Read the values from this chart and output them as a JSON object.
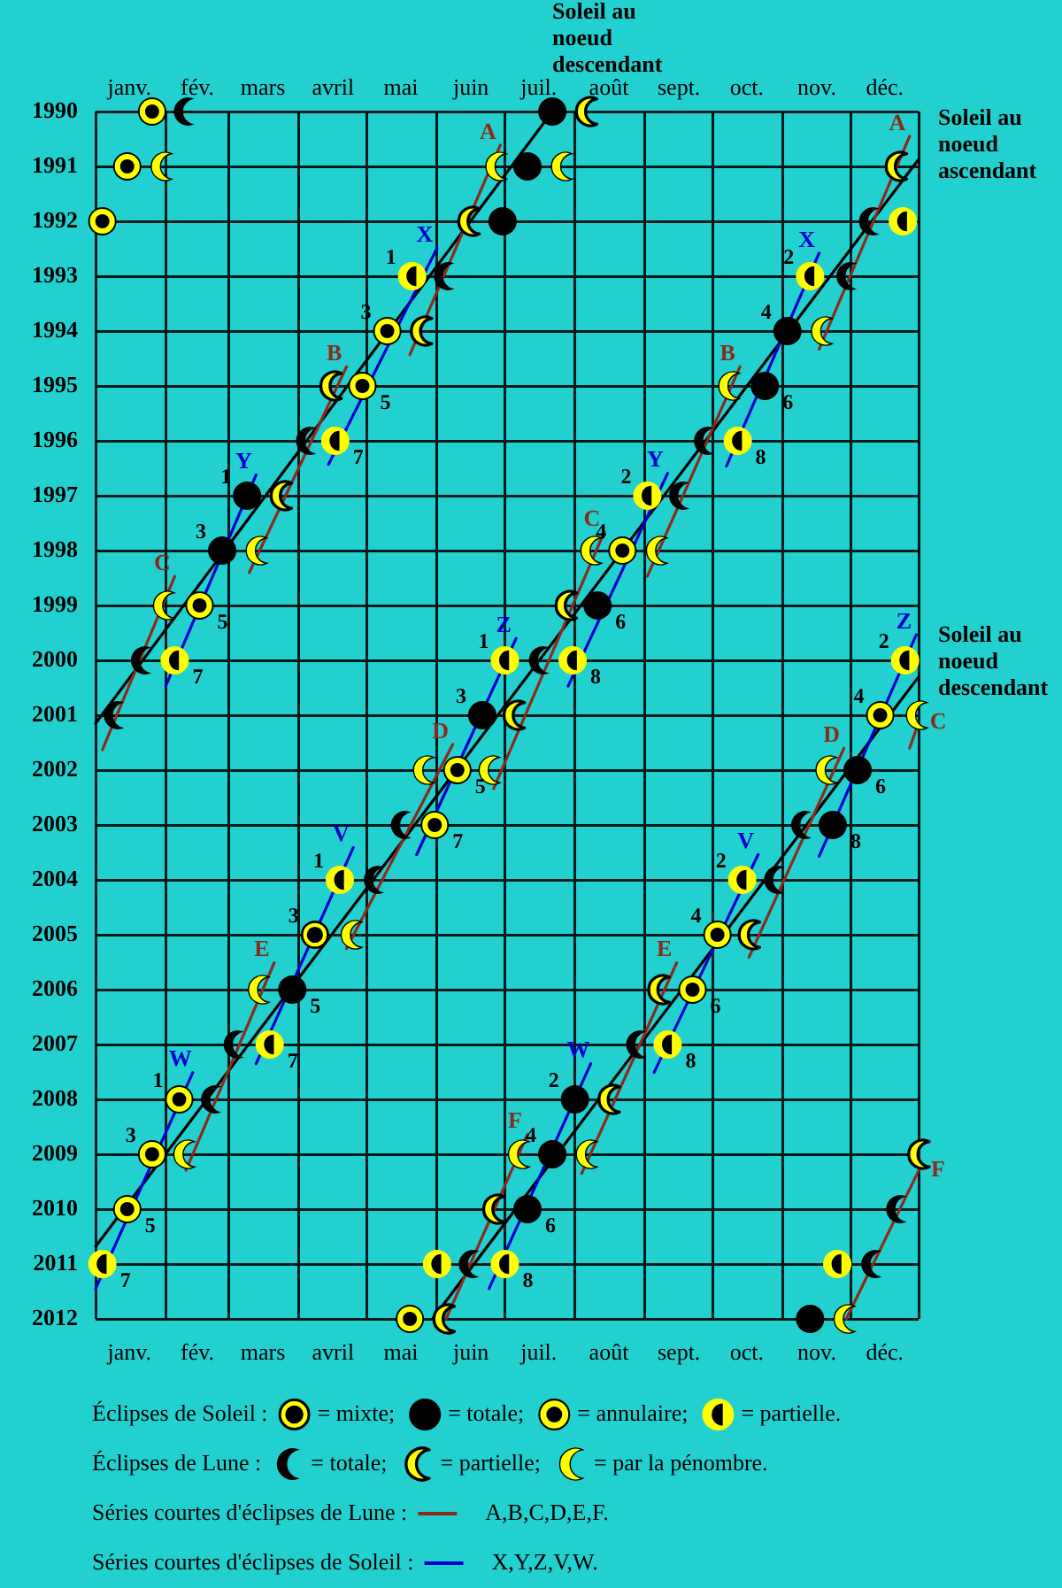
{
  "chart_data": {
    "type": "scatter",
    "xlim": [
      "--01-01",
      "--12-31"
    ],
    "xticks": [
      {
        "value": "--01-01",
        "label": null
      },
      {
        "value": "--01-16",
        "label": "janv."
      },
      {
        "value": "--02-01",
        "label": null
      },
      {
        "value": "--02-15",
        "label": "fév."
      },
      {
        "value": "--03-01",
        "label": null
      },
      {
        "value": "--03-16",
        "label": "mars"
      },
      {
        "value": "--04-01",
        "label": null
      },
      {
        "value": "--04-16",
        "label": "avril"
      },
      {
        "value": "--05-01",
        "label": null
      },
      {
        "value": "--05-16",
        "label": "mai"
      },
      {
        "value": "--06-01",
        "label": null
      },
      {
        "value": "--06-16",
        "label": "juin"
      },
      {
        "value": "--07-01",
        "label": null
      },
      {
        "value": "--07-16",
        "label": "juil."
      },
      {
        "value": "--08-01",
        "label": null
      },
      {
        "value": "--08-16",
        "label": "août"
      },
      {
        "value": "--09-01",
        "label": null
      },
      {
        "value": "--09-16",
        "label": "sept."
      },
      {
        "value": "--10-01",
        "label": null
      },
      {
        "value": "--10-16",
        "label": "oct."
      },
      {
        "value": "--11-01",
        "label": null
      },
      {
        "value": "--11-16",
        "label": "nov."
      },
      {
        "value": "--12-01",
        "label": null
      },
      {
        "value": "--12-16",
        "label": "déc."
      },
      {
        "value": "--12-31",
        "label": null
      }
    ],
    "x2lim": [
      "--01-01",
      "--12-31"
    ],
    "x2ticks": [
      {
        "value": "--01-01",
        "label": null
      },
      {
        "value": "--01-16",
        "label": "janv."
      },
      {
        "value": "--02-01",
        "label": null
      },
      {
        "value": "--02-15",
        "label": "fév."
      },
      {
        "value": "--03-01",
        "label": null
      },
      {
        "value": "--03-16",
        "label": "mars"
      },
      {
        "value": "--04-01",
        "label": null
      },
      {
        "value": "--04-16",
        "label": "avril"
      },
      {
        "value": "--05-01",
        "label": null
      },
      {
        "value": "--05-16",
        "label": "mai"
      },
      {
        "value": "--06-01",
        "label": null
      },
      {
        "value": "--06-16",
        "label": "juin"
      },
      {
        "value": "--07-01",
        "label": null
      },
      {
        "value": "--07-16",
        "label": "juil."
      },
      {
        "value": "--08-01",
        "label": null
      },
      {
        "value": "--08-16",
        "label": "août"
      },
      {
        "value": "--09-01",
        "label": null
      },
      {
        "value": "--09-16",
        "label": "sept."
      },
      {
        "value": "--10-01",
        "label": null
      },
      {
        "value": "--10-16",
        "label": "oct."
      },
      {
        "value": "--11-01",
        "label": null
      },
      {
        "value": "--11-16",
        "label": "nov."
      },
      {
        "value": "--12-01",
        "label": null
      },
      {
        "value": "--12-16",
        "label": "déc."
      },
      {
        "value": "--12-31",
        "label": null
      }
    ],
    "ylim": [
      2012,
      1990
    ],
    "yticks": [
      1990,
      1991,
      1992,
      1993,
      1994,
      1995,
      1996,
      1997,
      1998,
      1999,
      2000,
      2001,
      2002,
      2003,
      2004,
      2005,
      2006,
      2007,
      2008,
      2009,
      2010,
      2011,
      2012
    ],
    "grid": true,
    "legend": "bottom",
    "marker": "circle",
    "series": [
      {
        "name": "= mixte;",
        "color": "#000000",
        "x": [
          "--04-08"
        ],
        "values": [
          2005
        ]
      },
      {
        "name": "= totale;",
        "color": "#000000",
        "x": [
          "--07-22",
          "--07-11",
          "--06-30",
          "--11-03",
          "--10-24",
          "--03-09",
          "--02-26",
          "--08-11",
          "--06-21",
          "--12-04",
          "--11-23",
          "--03-29",
          "--08-01",
          "--07-22",
          "--07-11",
          "--11-13"
        ],
        "values": [
          1990,
          1991,
          1992,
          1994,
          1995,
          1997,
          1998,
          1999,
          2001,
          2002,
          2003,
          2006,
          2008,
          2009,
          2010,
          2012
        ]
      },
      {
        "name": "= annulaire;",
        "color": "#ffff00",
        "x": [
          "--01-26",
          "--01-15",
          "--01-04",
          "--05-10",
          "--04-29",
          "--08-22",
          "--02-16",
          "--12-14",
          "--06-10",
          "--05-31",
          "--10-03",
          "--09-22",
          "--02-07",
          "--01-26",
          "--01-15",
          "--05-20"
        ],
        "values": [
          1990,
          1991,
          1992,
          1994,
          1995,
          1998,
          1999,
          2001,
          2002,
          2003,
          2005,
          2006,
          2008,
          2009,
          2010,
          2012
        ]
      },
      {
        "name": "= partielle.",
        "color": "#ffff00",
        "x": [
          "--12-24",
          "--05-21",
          "--11-13",
          "--04-17",
          "--10-12",
          "--09-02",
          "--02-05",
          "--07-01",
          "--07-31",
          "--12-25",
          "--04-19",
          "--10-14",
          "--03-19",
          "--09-11",
          "--01-04",
          "--06-01",
          "--07-01",
          "--11-25"
        ],
        "values": [
          1992,
          1993,
          1993,
          1996,
          1996,
          1997,
          2000,
          2000,
          2000,
          2000,
          2004,
          2004,
          2007,
          2007,
          2011,
          2011,
          2011,
          2011
        ]
      },
      {
        "name": "= totale;",
        "color": "#000000",
        "x": [
          "--02-09",
          "--12-09",
          "--06-04",
          "--11-29",
          "--04-04",
          "--09-27",
          "--09-16",
          "--01-21",
          "--07-16",
          "--01-09",
          "--05-16",
          "--11-09",
          "--05-04",
          "--10-28",
          "--03-03",
          "--08-28",
          "--02-21",
          "--12-21",
          "--06-15",
          "--12-10"
        ],
        "values": [
          1990,
          1992,
          1993,
          1993,
          1996,
          1996,
          1997,
          2000,
          2000,
          2001,
          2003,
          2003,
          2004,
          2004,
          2007,
          2007,
          2008,
          2010,
          2011,
          2011
        ]
      },
      {
        "name": "= partielle;",
        "color": "#ffff00",
        "x": [
          "--08-06",
          "--12-21",
          "--06-15",
          "--05-25",
          "--04-15",
          "--03-24",
          "--07-28",
          "--07-05",
          "--10-17",
          "--09-07",
          "--08-16",
          "--12-31",
          "--06-26",
          "--06-04"
        ],
        "values": [
          1990,
          1991,
          1992,
          1994,
          1995,
          1997,
          1999,
          2001,
          2005,
          2006,
          2008,
          2009,
          2010,
          2012
        ]
      },
      {
        "name": "= par la pénombre.",
        "color": "#ffff00",
        "x": [
          "--01-30",
          "--06-27",
          "--07-26",
          "--11-18",
          "--10-08",
          "--03-13",
          "--08-08",
          "--09-06",
          "--01-31",
          "--12-30",
          "--05-26",
          "--06-24",
          "--11-20",
          "--04-24",
          "--03-14",
          "--02-09",
          "--07-07",
          "--08-06",
          "--11-28"
        ],
        "values": [
          1991,
          1991,
          1991,
          1994,
          1995,
          1998,
          1998,
          1998,
          1999,
          2001,
          2002,
          2002,
          2002,
          2005,
          2006,
          2009,
          2009,
          2009,
          2012
        ]
      },
      {
        "name": "A,B,C,D,E,F.",
        "type": "line",
        "marker": "none",
        "color": "#8b2b1b",
        "x": [
          "--06-29",
          "--05-20",
          null,
          "--12-27",
          "--11-17",
          null,
          "--04-22",
          "--03-10",
          null,
          "--10-13",
          "--09-02",
          null,
          "--02-05",
          "--01-04",
          null,
          "--08-14",
          "--06-26",
          null,
          "--12-31",
          "--12-27",
          null,
          "--06-08",
          "--04-22",
          null,
          "--11-28",
          "--10-17",
          null,
          "--03-21",
          "--02-10",
          null,
          "--09-15",
          "--08-04",
          null,
          "--07-11",
          "--06-05",
          null,
          "--12-31",
          "--11-29"
        ],
        "values": [
          1990.61,
          1994.43,
          null,
          1990.45,
          1994.33,
          null,
          1994.65,
          1998.4,
          null,
          1994.65,
          1998.47,
          null,
          1998.47,
          2001.63,
          null,
          1997.66,
          2002.34,
          null,
          2001.13,
          2001.6,
          null,
          2001.53,
          2005.25,
          null,
          2001.6,
          2005.41,
          null,
          2005.51,
          2009.29,
          null,
          2005.51,
          2009.35,
          null,
          2008.64,
          2012,
          null,
          2009.3,
          2012
        ],
        "value_labels": [
          "A",
          null,
          null,
          "A",
          null,
          null,
          "B",
          null,
          null,
          "B",
          null,
          null,
          "C",
          null,
          null,
          "C",
          null,
          null,
          "C",
          null,
          null,
          "D",
          null,
          null,
          "D",
          null,
          null,
          "E",
          null,
          null,
          "E",
          null,
          null,
          "F",
          null,
          null,
          "F",
          null
        ]
      },
      {
        "name": "X,Y,Z,V,W.",
        "type": "line",
        "marker": "none",
        "color": "#0000cc",
        "x": [
          "--06-01",
          "--04-14",
          null,
          "--11-17",
          "--10-07",
          null,
          "--03-13",
          "--02-01",
          null,
          "--09-11",
          "--07-29",
          null,
          "--07-06",
          "--05-23",
          null,
          "--12-30",
          "--11-17",
          null,
          "--04-25",
          "--03-13",
          null,
          "--10-21",
          "--09-05",
          null,
          "--02-13",
          "--01-01",
          null,
          "--08-08",
          "--06-24"
        ],
        "values": [
          1992.49,
          1996.43,
          null,
          1992.58,
          1996.46,
          null,
          1996.62,
          2000.47,
          null,
          1996.59,
          2000.47,
          null,
          1999.6,
          2003.54,
          null,
          1999.53,
          2003.57,
          null,
          2003.41,
          2007.35,
          null,
          2003.54,
          2007.51,
          null,
          2007.51,
          2011.45,
          null,
          2007.35,
          2011.45
        ],
        "value_labels": [
          "X",
          null,
          null,
          "X",
          null,
          null,
          "Y",
          null,
          null,
          "Y",
          null,
          null,
          "Z",
          null,
          null,
          "Z",
          null,
          null,
          "V",
          null,
          null,
          "V",
          null,
          null,
          "W",
          null,
          null,
          "W",
          null
        ]
      },
      {
        "type": "line",
        "marker": "none",
        "color": "#000000",
        "x": [
          "--07-22",
          "--01-01"
        ],
        "values": [
          1990,
          2001.15
        ]
      },
      {
        "type": "line",
        "marker": "none",
        "color": "#000000",
        "x": [
          "--12-31",
          "--01-01"
        ],
        "values": [
          1990.87,
          2010.68
        ]
      },
      {
        "type": "line",
        "marker": "none",
        "color": "#000000",
        "x": [
          "--12-31",
          "--05-30"
        ],
        "values": [
          2000.3,
          2012
        ]
      }
    ],
    "annotations": [
      "Éclipses de Soleil :",
      "Éclipses de Lune :",
      "Séries courtes d'éclipses de Lune :",
      "Séries courtes d'éclipses de Soleil :",
      {
        "text": "Soleil au noeud descendant",
        "x": "--07-22",
        "y": 1990
      },
      {
        "text": "Soleil au noeud ascendant",
        "x": "--12-31",
        "y": 1990.87
      },
      {
        "text": "Soleil au noeud descendant",
        "x": "--12-31",
        "y": 2000.3
      },
      {
        "text": "1",
        "x": "--05-21",
        "y": 1993
      },
      {
        "text": "3",
        "x": "--05-10",
        "y": 1994
      },
      {
        "text": "5",
        "x": "--04-29",
        "y": 1995
      },
      {
        "text": "7",
        "x": "--04-17",
        "y": 1996
      },
      {
        "text": "2",
        "x": "--11-13",
        "y": 1993
      },
      {
        "text": "4",
        "x": "--11-03",
        "y": 1994
      },
      {
        "text": "6",
        "x": "--10-24",
        "y": 1995
      },
      {
        "text": "8",
        "x": "--10-12",
        "y": 1996
      },
      {
        "text": "1",
        "x": "--03-09",
        "y": 1997
      },
      {
        "text": "3",
        "x": "--02-26",
        "y": 1998
      },
      {
        "text": "5",
        "x": "--02-16",
        "y": 1999
      },
      {
        "text": "7",
        "x": "--02-05",
        "y": 2000
      },
      {
        "text": "2",
        "x": "--09-02",
        "y": 1997
      },
      {
        "text": "4",
        "x": "--08-22",
        "y": 1998
      },
      {
        "text": "6",
        "x": "--08-11",
        "y": 1999
      },
      {
        "text": "8",
        "x": "--07-31",
        "y": 2000
      },
      {
        "text": "1",
        "x": "--07-01",
        "y": 2000
      },
      {
        "text": "3",
        "x": "--06-21",
        "y": 2001
      },
      {
        "text": "5",
        "x": "--06-10",
        "y": 2002
      },
      {
        "text": "7",
        "x": "--05-31",
        "y": 2003
      },
      {
        "text": "2",
        "x": "--12-25",
        "y": 2000
      },
      {
        "text": "4",
        "x": "--12-14",
        "y": 2001
      },
      {
        "text": "6",
        "x": "--12-04",
        "y": 2002
      },
      {
        "text": "8",
        "x": "--11-23",
        "y": 2003
      },
      {
        "text": "1",
        "x": "--04-19",
        "y": 2004
      },
      {
        "text": "3",
        "x": "--04-08",
        "y": 2005
      },
      {
        "text": "5",
        "x": "--03-29",
        "y": 2006
      },
      {
        "text": "7",
        "x": "--03-19",
        "y": 2007
      },
      {
        "text": "2",
        "x": "--10-14",
        "y": 2004
      },
      {
        "text": "4",
        "x": "--10-03",
        "y": 2005
      },
      {
        "text": "6",
        "x": "--09-22",
        "y": 2006
      },
      {
        "text": "8",
        "x": "--09-11",
        "y": 2007
      },
      {
        "text": "1",
        "x": "--02-07",
        "y": 2008
      },
      {
        "text": "3",
        "x": "--01-26",
        "y": 2009
      },
      {
        "text": "5",
        "x": "--01-15",
        "y": 2010
      },
      {
        "text": "7",
        "x": "--01-04",
        "y": 2011
      },
      {
        "text": "2",
        "x": "--08-01",
        "y": 2008
      },
      {
        "text": "4",
        "x": "--07-22",
        "y": 2009
      },
      {
        "text": "6",
        "x": "--07-11",
        "y": 2010
      },
      {
        "text": "8",
        "x": "--07-01",
        "y": 2011
      }
    ]
  }
}
